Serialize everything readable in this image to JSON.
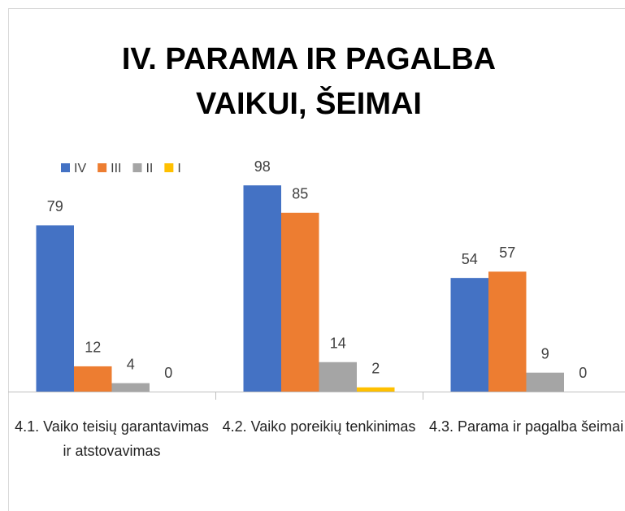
{
  "chart_data": {
    "type": "bar",
    "title": [
      "IV. PARAMA IR PAGALBA",
      "VAIKUI, ŠEIMAI"
    ],
    "categories": [
      "4.1. Vaiko teisių garantavimas ir atstovavimas",
      "4.2. Vaiko poreikių tenkinimas",
      "4.3. Parama ir pagalba šeimai"
    ],
    "series": [
      {
        "name": "IV",
        "color": "#4472c4",
        "values": [
          79,
          98,
          54
        ]
      },
      {
        "name": "III",
        "color": "#ed7d31",
        "values": [
          12,
          85,
          57
        ]
      },
      {
        "name": "II",
        "color": "#a5a5a5",
        "values": [
          4,
          14,
          9
        ]
      },
      {
        "name": "I",
        "color": "#ffc000",
        "values": [
          0,
          2,
          0
        ]
      }
    ],
    "ylim": [
      0,
      100
    ],
    "legend": "top-left"
  }
}
